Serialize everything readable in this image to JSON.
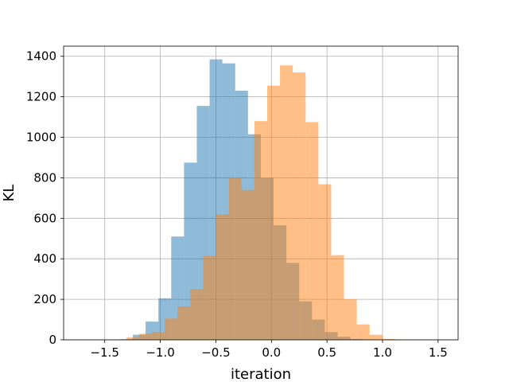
{
  "chart_data": {
    "type": "bar",
    "subtype": "overlapping-histogram",
    "xlabel": "iteration",
    "ylabel": "KL",
    "xlim": [
      -1.87,
      1.68
    ],
    "ylim": [
      0,
      1450
    ],
    "xticks": [
      -1.5,
      -1.0,
      -0.5,
      0.0,
      0.5,
      1.0,
      1.5
    ],
    "xtick_labels": [
      "−1.5",
      "−1.0",
      "−0.5",
      "0.0",
      "0.5",
      "1.0",
      "1.5"
    ],
    "yticks": [
      0,
      200,
      400,
      600,
      800,
      1000,
      1200,
      1400
    ],
    "ytick_labels": [
      "0",
      "200",
      "400",
      "600",
      "800",
      "1000",
      "1200",
      "1400"
    ],
    "grid": true,
    "legend": "none",
    "series": [
      {
        "color": "#1f77b4",
        "alpha": 0.5,
        "bin_width": 0.1152,
        "bin_edges_start": -1.3626,
        "counts": [
          3,
          25,
          90,
          205,
          510,
          875,
          1155,
          1385,
          1365,
          1230,
          1015,
          800,
          565,
          380,
          190,
          100,
          38,
          15,
          4,
          2,
          1,
          1
        ]
      },
      {
        "color": "#ff7f0e",
        "alpha": 0.5,
        "bin_width": 0.1152,
        "bin_edges_start": -1.4204,
        "counts": [
          2,
          12,
          30,
          38,
          105,
          165,
          250,
          415,
          620,
          800,
          740,
          1080,
          1255,
          1355,
          1320,
          1075,
          768,
          418,
          200,
          76,
          25,
          4,
          1
        ]
      }
    ]
  }
}
